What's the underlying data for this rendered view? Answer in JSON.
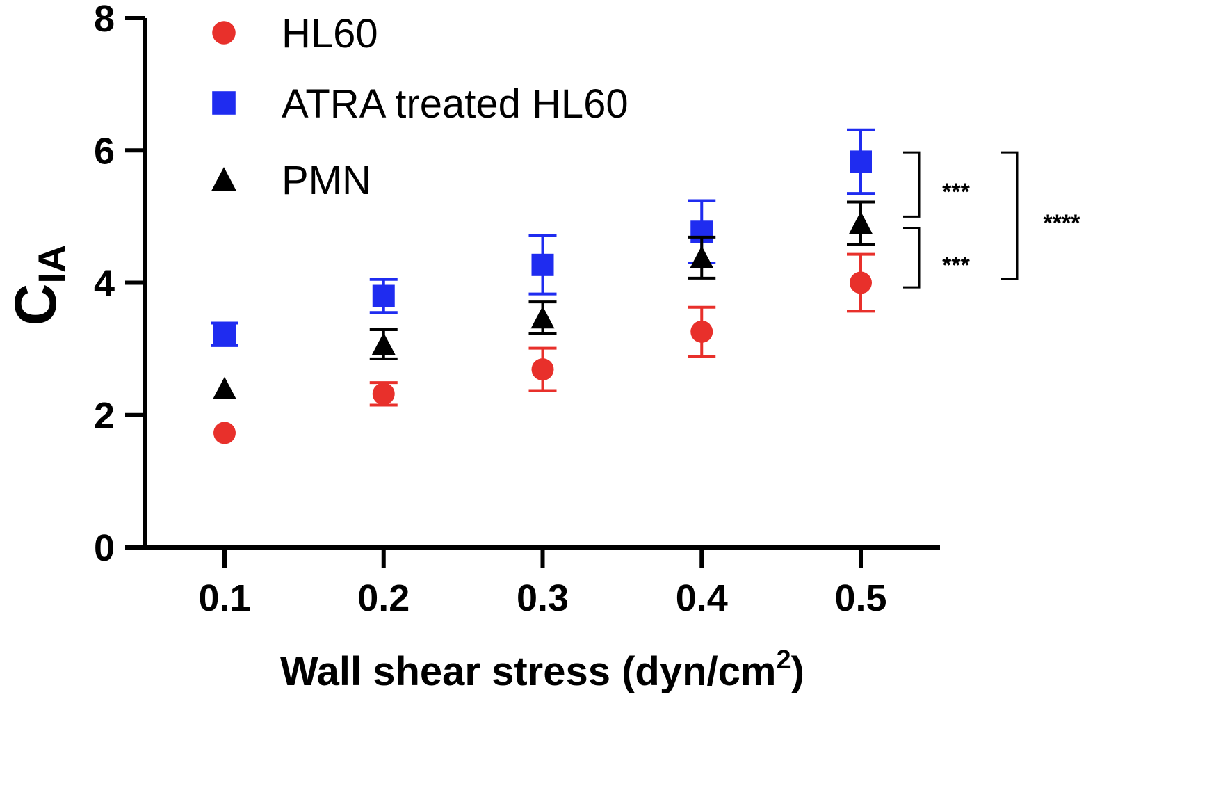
{
  "chart_data": {
    "type": "scatter",
    "title": "",
    "xlabel": "Wall shear stress (dyn/cm",
    "xlabel_sup": "2",
    "xlabel_end": ")",
    "ylabel": "C",
    "ylabel_sub": "IA",
    "x_ticks": [
      "0.1",
      "0.2",
      "0.3",
      "0.4",
      "0.5"
    ],
    "y_ticks": [
      "0",
      "2",
      "4",
      "6",
      "8"
    ],
    "x_values": [
      0.1,
      0.2,
      0.3,
      0.4,
      0.5
    ],
    "ylim": [
      0,
      8
    ],
    "grid": false,
    "legend_position": "top-left",
    "series": [
      {
        "name": "HL60",
        "marker": "circle",
        "color": "#e8302b",
        "values": [
          1.73,
          2.32,
          2.69,
          3.26,
          4.0
        ],
        "errors": [
          0.0,
          0.17,
          0.32,
          0.37,
          0.43
        ]
      },
      {
        "name": "ATRA treated HL60",
        "marker": "square",
        "color": "#1f2cf0",
        "values": [
          3.22,
          3.8,
          4.27,
          4.77,
          5.83
        ],
        "errors": [
          0.17,
          0.25,
          0.44,
          0.47,
          0.48
        ]
      },
      {
        "name": "PMN",
        "marker": "triangle",
        "color": "#000000",
        "values": [
          2.4,
          3.07,
          3.47,
          4.38,
          4.9
        ],
        "errors": [
          0.0,
          0.22,
          0.24,
          0.31,
          0.32
        ]
      }
    ],
    "significance": [
      {
        "label": "***",
        "y_top": 5.97,
        "y_bottom": 5.0
      },
      {
        "label": "***",
        "y_top": 4.83,
        "y_bottom": 3.93
      },
      {
        "label": "****",
        "y_top": 5.97,
        "y_bottom": 4.06
      }
    ]
  }
}
